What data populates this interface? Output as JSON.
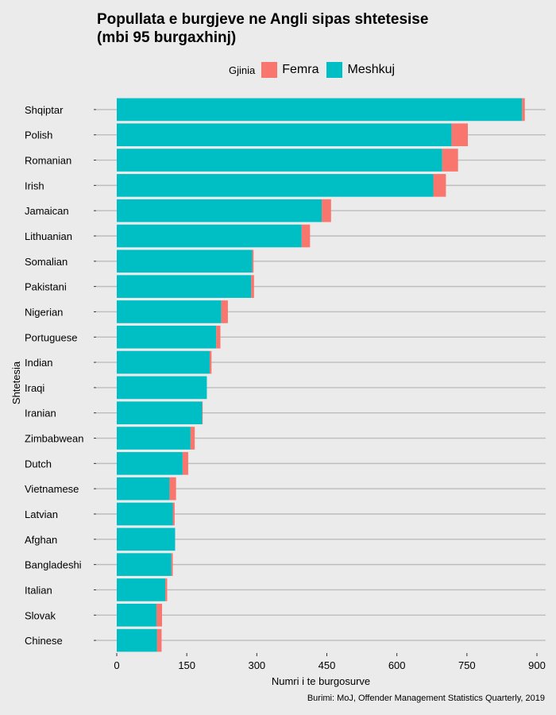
{
  "chart_data": {
    "type": "bar",
    "stacked": true,
    "orientation": "horizontal",
    "title_lines": [
      "Popullata e burgjeve ne Angli sipas shtetesise",
      "(mbi 95 burgaxhinj)"
    ],
    "xlabel": "Numri i te burgosurve",
    "ylabel": "Shtetesia",
    "xlim": [
      -15,
      905
    ],
    "xticks": [
      0,
      150,
      300,
      450,
      600,
      750,
      900
    ],
    "legend": {
      "title": "Gjinia",
      "position": "top",
      "entries": [
        {
          "name": "Femra",
          "color": "#f8766d"
        },
        {
          "name": "Meshkuj",
          "color": "#00bfc4"
        }
      ]
    },
    "categories": [
      "Shqiptar",
      "Polish",
      "Romanian",
      "Irish",
      "Jamaican",
      "Lithuanian",
      "Somalian",
      "Pakistani",
      "Nigerian",
      "Portuguese",
      "Indian",
      "Iraqi",
      "Iranian",
      "Zimbabwean",
      "Dutch",
      "Vietnamese",
      "Latvian",
      "Afghan",
      "Bangladeshi",
      "Italian",
      "Slovak",
      "Chinese"
    ],
    "series": [
      {
        "name": "Meshkuj",
        "color": "#00bfc4",
        "values": [
          868,
          717,
          697,
          678,
          439,
          396,
          290,
          288,
          224,
          213,
          199,
          193,
          183,
          158,
          141,
          113,
          120,
          125,
          117,
          104,
          85,
          86
        ]
      },
      {
        "name": "Femra",
        "color": "#f8766d",
        "values": [
          6,
          35,
          34,
          27,
          20,
          18,
          3,
          6,
          14,
          9,
          4,
          0,
          1,
          9,
          12,
          14,
          4,
          0,
          3,
          4,
          12,
          10
        ]
      }
    ],
    "caption": "Burimi: MoJ, Offender Management Statistics Quarterly, 2019"
  }
}
